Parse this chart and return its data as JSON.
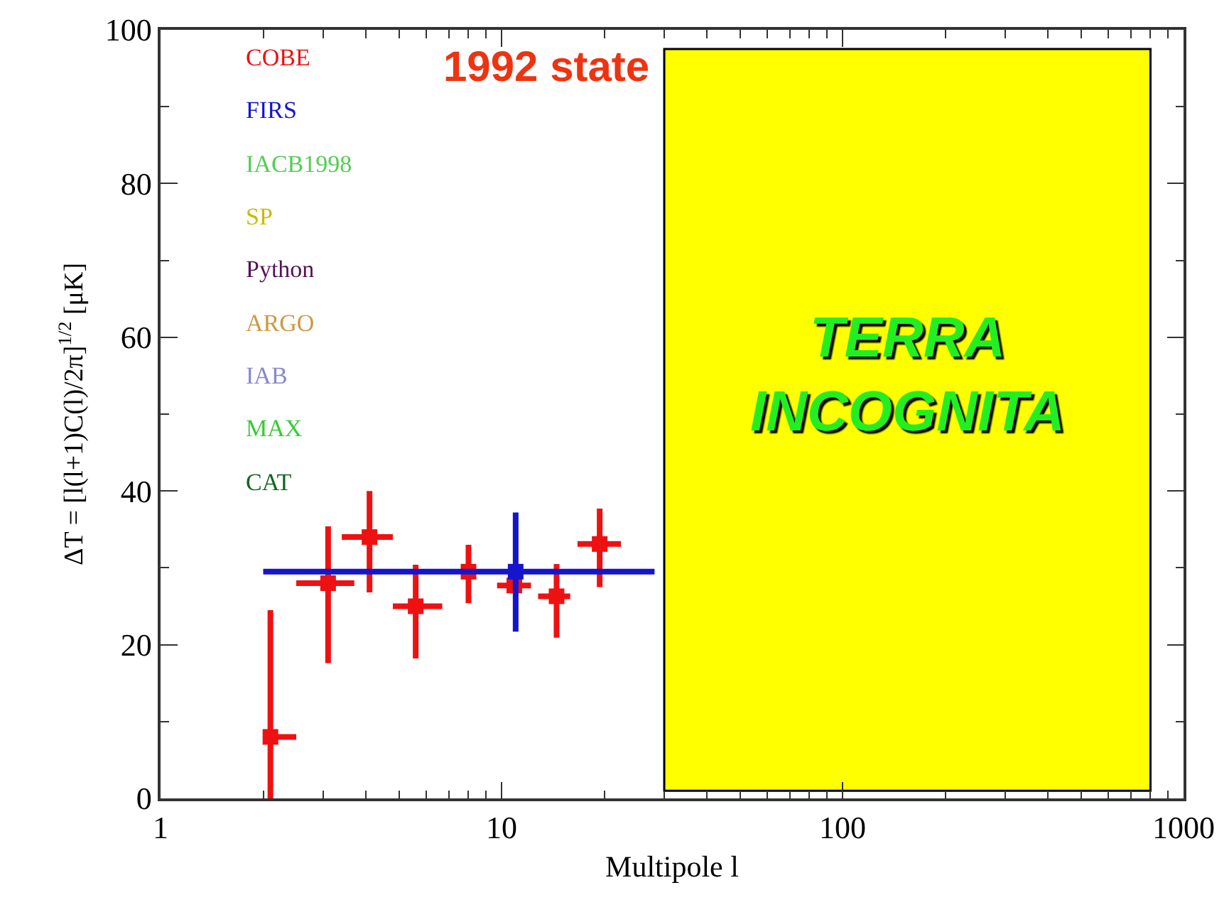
{
  "chart_data": {
    "type": "scatter",
    "xlabel": "Multipole l",
    "ylabel": "ΔT = [l(l+1)C(l)/2π]$^{1/2}$ [μK]",
    "annotations": [
      "1992 state"
    ],
    "log": "x",
    "xlim": [
      1,
      1000
    ],
    "xticks": [
      1,
      10,
      100,
      1000
    ],
    "ylim": [
      0,
      100
    ],
    "yticks": [
      0,
      20,
      40,
      60,
      80,
      100
    ],
    "grid": false,
    "legend": "top left",
    "marker": "square",
    "series": [
      {
        "name": "COBE",
        "color": "#ee1111",
        "x": [
          2.1,
          3.1,
          4.1,
          5.6,
          8.0,
          10.9,
          14.5,
          19.4
        ],
        "values": [
          8,
          28,
          34,
          25,
          29.5,
          27.7,
          26.3,
          33.1
        ],
        "errors": [
          [
            0,
            24.5
          ],
          [
            17.6,
            35.4
          ],
          [
            26.8,
            40
          ],
          [
            18.2,
            30.4
          ],
          [
            25.4,
            33
          ],
          null,
          [
            20.9,
            30.5
          ],
          [
            27.5,
            37.7
          ]
        ],
        "xerrors": [
          [
            2.0,
            2.5
          ],
          [
            2.5,
            3.7
          ],
          [
            3.4,
            4.8
          ],
          [
            4.8,
            6.7
          ],
          null,
          [
            9.7,
            12.2
          ],
          [
            12.8,
            15.9
          ],
          [
            16.7,
            22.4
          ]
        ]
      },
      {
        "name": "FIRS",
        "color": "#1515cc",
        "x": [
          11.0
        ],
        "values": [
          29.5
        ],
        "errors": [
          [
            21.7,
            37.2
          ]
        ],
        "xerrors": [
          [
            2.0,
            28.1
          ]
        ]
      },
      {
        "name": "IACB1998",
        "color": "#55cc55"
      },
      {
        "name": "SP",
        "color": "#c8bc00"
      },
      {
        "name": "Python",
        "color": "#551155"
      },
      {
        "name": "ARGO",
        "color": "#cc9944"
      },
      {
        "name": "IAB",
        "color": "#8888cc"
      },
      {
        "name": "MAX",
        "color": "#33cc33"
      },
      {
        "name": "CAT",
        "color": "#116622"
      }
    ],
    "bands": [
      {
        "axis": "x",
        "from": 30,
        "to": 800,
        "label": "TERRA INCOGNITA",
        "color": "#ffff00"
      }
    ]
  }
}
